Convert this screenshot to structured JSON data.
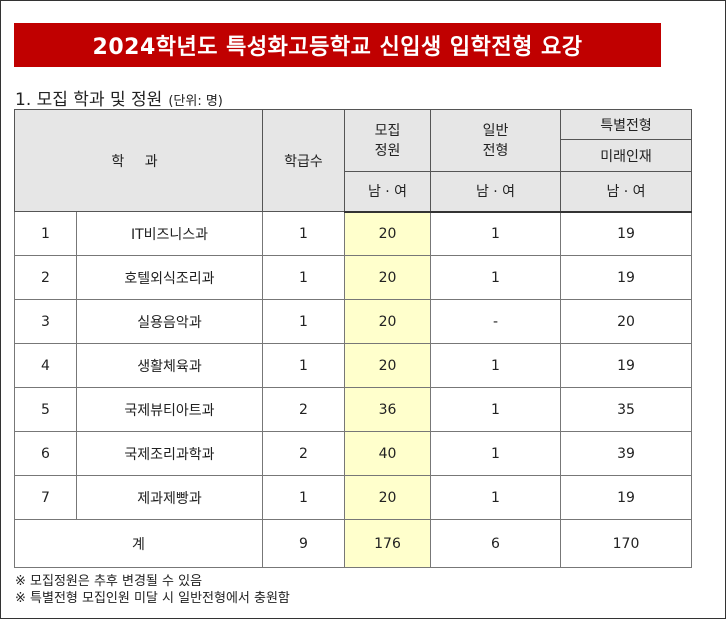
{
  "title": "2024학년도 특성화고등학교 신입생 입학전형 요강",
  "section": {
    "heading": "1. 모집 학과 및 정원",
    "unit": "(단위: 명)"
  },
  "table": {
    "header": {
      "department": "학  과",
      "classes": "학급수",
      "quota_line1": "모집",
      "quota_line2": "정원",
      "general_line1": "일반",
      "general_line2": "전형",
      "special": "특별전형",
      "special_sub": "미래인재",
      "gender": "남 · 여"
    },
    "rows": [
      {
        "no": "1",
        "name": "IT비즈니스과",
        "classes": "1",
        "quota": "20",
        "general": "1",
        "special": "19"
      },
      {
        "no": "2",
        "name": "호텔외식조리과",
        "classes": "1",
        "quota": "20",
        "general": "1",
        "special": "19"
      },
      {
        "no": "3",
        "name": "실용음악과",
        "classes": "1",
        "quota": "20",
        "general": "-",
        "special": "20"
      },
      {
        "no": "4",
        "name": "생활체육과",
        "classes": "1",
        "quota": "20",
        "general": "1",
        "special": "19"
      },
      {
        "no": "5",
        "name": "국제뷰티아트과",
        "classes": "2",
        "quota": "36",
        "general": "1",
        "special": "35"
      },
      {
        "no": "6",
        "name": "국제조리과학과",
        "classes": "2",
        "quota": "40",
        "general": "1",
        "special": "39"
      },
      {
        "no": "7",
        "name": "제과제빵과",
        "classes": "1",
        "quota": "20",
        "general": "1",
        "special": "19"
      }
    ],
    "total": {
      "label": "계",
      "classes": "9",
      "quota": "176",
      "general": "6",
      "special": "170"
    }
  },
  "notes": [
    "※ 모집정원은 추후 변경될 수 있음",
    "※ 특별전형 모집인원 미달 시 일반전형에서 충원함"
  ]
}
